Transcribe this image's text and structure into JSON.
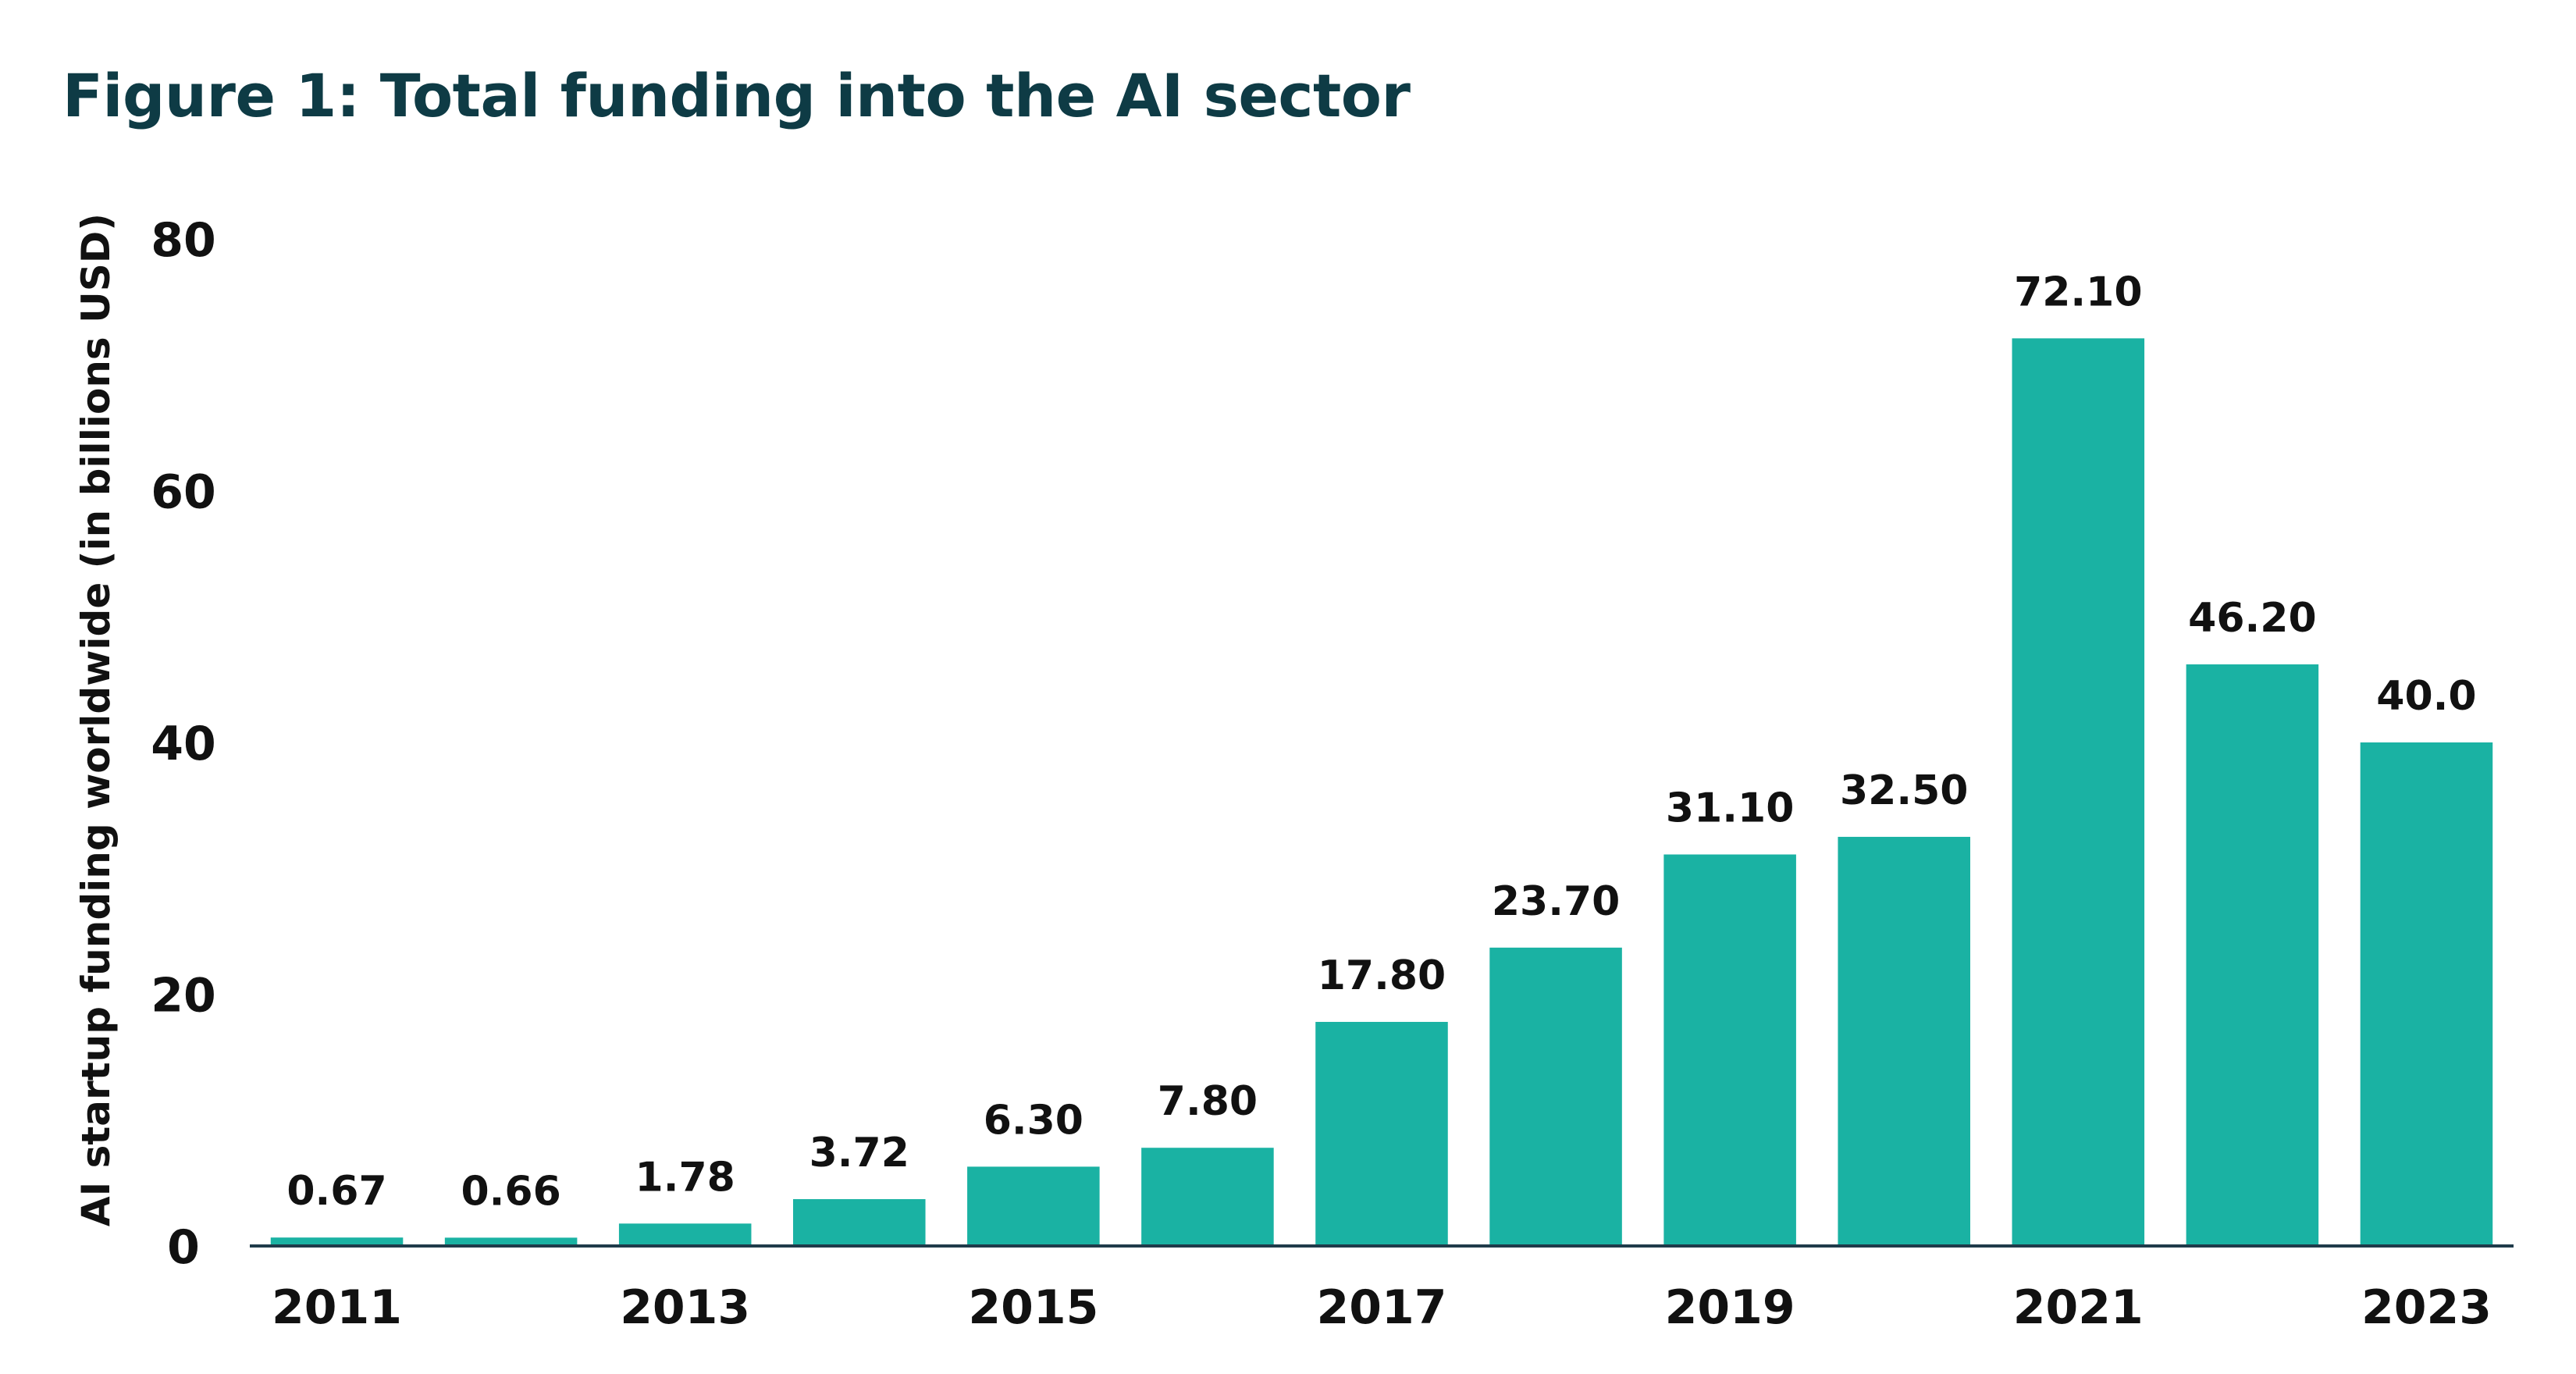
{
  "chart_data": {
    "type": "bar",
    "title": "Figure 1: Total funding into the AI sector",
    "xlabel": "",
    "ylabel": "AI startup funding worldwide (in billions USD)",
    "categories": [
      "2011",
      "2012",
      "2013",
      "2014",
      "2015",
      "2016",
      "2017",
      "2018",
      "2019",
      "2020",
      "2021",
      "2022",
      "2023"
    ],
    "values": [
      0.67,
      0.66,
      1.78,
      3.72,
      6.3,
      7.8,
      17.8,
      23.7,
      31.1,
      32.5,
      72.1,
      46.2,
      40.0
    ],
    "value_labels": [
      "0.67",
      "0.66",
      "1.78",
      "3.72",
      "6.30",
      "7.80",
      "17.80",
      "23.70",
      "31.10",
      "32.50",
      "72.10",
      "46.20",
      "40.0"
    ],
    "x_tick_labels": [
      "2011",
      "2013",
      "2015",
      "2017",
      "2019",
      "2021",
      "2023"
    ],
    "y_ticks": [
      0,
      20,
      40,
      60,
      80
    ],
    "ylim": [
      0,
      80
    ],
    "grid": false,
    "legend": "none",
    "colors": {
      "bar": "#1ab2a3",
      "title": "#0e3b45",
      "text": "#111111",
      "axis": "#1f3b4a"
    }
  }
}
